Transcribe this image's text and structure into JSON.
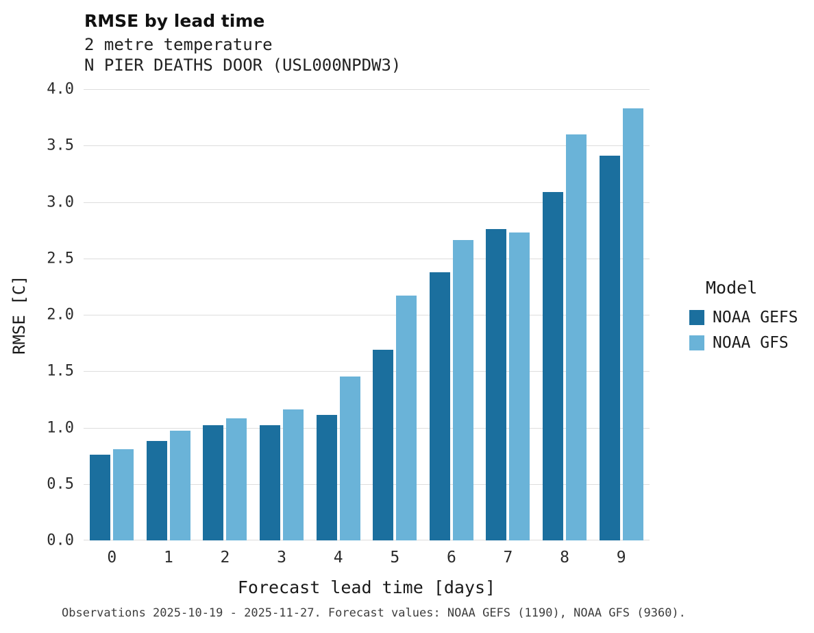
{
  "chart_data": {
    "type": "bar",
    "title": "RMSE by lead time",
    "subtitle1": "2 metre temperature",
    "subtitle2": "N PIER  DEATHS DOOR (USL000NPDW3)",
    "xlabel": "Forecast lead time [days]",
    "ylabel": "RMSE [C]",
    "ylim": [
      0.0,
      4.0
    ],
    "ytick_step": 0.5,
    "grid": true,
    "legend_title": "Model",
    "legend_position": "right",
    "categories": [
      "0",
      "1",
      "2",
      "3",
      "4",
      "5",
      "6",
      "7",
      "8",
      "9"
    ],
    "series": [
      {
        "name": "NOAA GEFS",
        "color": "#1b6f9e",
        "values": [
          0.76,
          0.88,
          1.02,
          1.02,
          1.11,
          1.69,
          2.38,
          2.76,
          3.09,
          3.41
        ]
      },
      {
        "name": "NOAA GFS",
        "color": "#6ab3d8",
        "values": [
          0.81,
          0.97,
          1.08,
          1.16,
          1.45,
          2.17,
          2.66,
          2.73,
          3.6,
          3.83
        ]
      }
    ],
    "caption": "Observations 2025-10-19 - 2025-11-27. Forecast values: NOAA GEFS (1190), NOAA GFS (9360)."
  }
}
